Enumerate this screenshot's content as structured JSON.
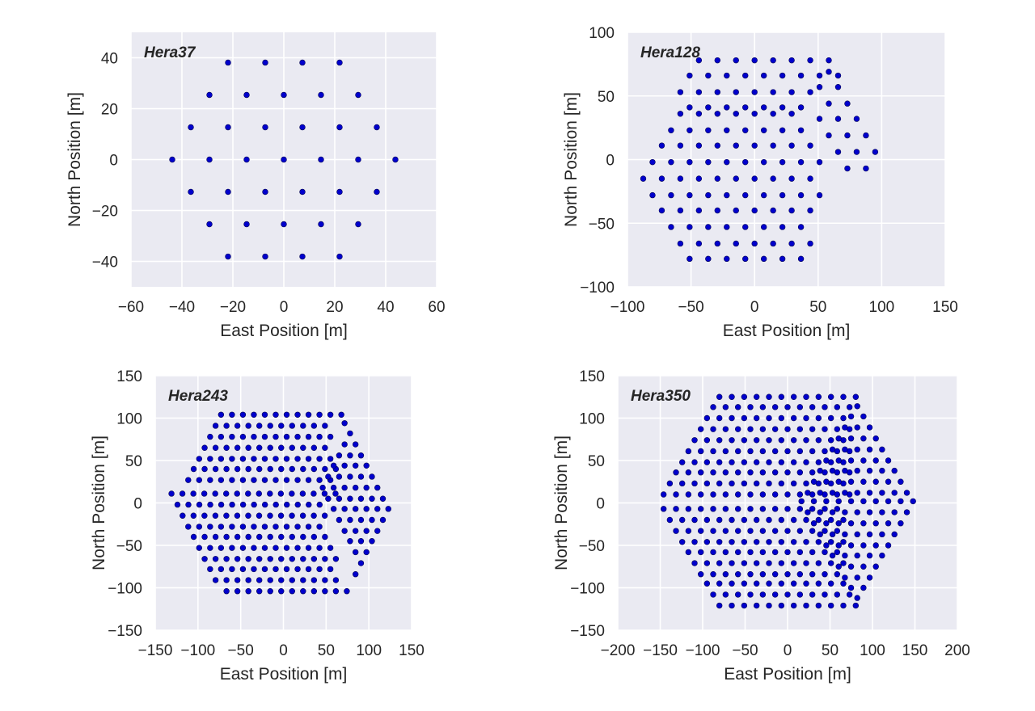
{
  "chart_data": [
    {
      "type": "scatter",
      "title": "Hera37",
      "xlabel": "East Position [m]",
      "ylabel": "North Position [m]",
      "xlim": [
        -60,
        60
      ],
      "ylim": [
        -50,
        50
      ],
      "xticks": [
        -60,
        -40,
        -20,
        0,
        20,
        40,
        60
      ],
      "yticks": [
        -40,
        -20,
        0,
        20,
        40
      ],
      "grid": true,
      "color": "#0000cc",
      "rows": [
        {
          "y": 38.1,
          "x_start": -21.9,
          "count": 4,
          "spacing": 14.6
        },
        {
          "y": 25.4,
          "x_start": -29.2,
          "count": 5,
          "spacing": 14.6
        },
        {
          "y": 12.7,
          "x_start": -36.5,
          "count": 6,
          "spacing": 14.6
        },
        {
          "y": 0,
          "x_start": -43.8,
          "count": 7,
          "spacing": 14.6
        },
        {
          "y": -12.7,
          "x_start": -36.5,
          "count": 6,
          "spacing": 14.6
        },
        {
          "y": -25.4,
          "x_start": -29.2,
          "count": 5,
          "spacing": 14.6
        },
        {
          "y": -38.1,
          "x_start": -21.9,
          "count": 4,
          "spacing": 14.6
        }
      ]
    },
    {
      "type": "scatter",
      "title": "Hera128",
      "xlabel": "East Position [m]",
      "ylabel": "North Position [m]",
      "xlim": [
        -100,
        150
      ],
      "ylim": [
        -100,
        100
      ],
      "xticks": [
        -100,
        -50,
        0,
        50,
        100,
        150
      ],
      "yticks": [
        -100,
        -50,
        0,
        50,
        100
      ],
      "grid": true,
      "color": "#0000cc",
      "rows": [
        {
          "y": 78,
          "x_start": -43.8,
          "count": 8,
          "spacing": 14.6
        },
        {
          "y": 66,
          "x_start": -51.1,
          "count": 9,
          "spacing": 14.6
        },
        {
          "y": 53,
          "x_start": -58.4,
          "count": 8,
          "spacing": 14.6
        },
        {
          "y": 41,
          "x_start": -51.1,
          "count": 7,
          "spacing": 14.6
        },
        {
          "y": 36,
          "x_start": -58.4,
          "count": 7,
          "spacing": 14.6
        },
        {
          "y": 23,
          "x_start": -65.7,
          "count": 8,
          "spacing": 14.6
        },
        {
          "y": 11,
          "x_start": -73.0,
          "count": 9,
          "spacing": 14.6
        },
        {
          "y": -2,
          "x_start": -80.3,
          "count": 10,
          "spacing": 14.6
        },
        {
          "y": -15,
          "x_start": -87.6,
          "count": 10,
          "spacing": 14.6
        },
        {
          "y": -28,
          "x_start": -80.3,
          "count": 10,
          "spacing": 14.6
        },
        {
          "y": -40,
          "x_start": -73.0,
          "count": 9,
          "spacing": 14.6
        },
        {
          "y": -53,
          "x_start": -65.7,
          "count": 8,
          "spacing": 14.6
        },
        {
          "y": -66,
          "x_start": -58.4,
          "count": 8,
          "spacing": 14.6
        },
        {
          "y": -78,
          "x_start": -51.1,
          "count": 7,
          "spacing": 14.6
        },
        {
          "y": 69,
          "x_start": 58.4,
          "count": 1,
          "spacing": 14.6
        },
        {
          "y": 57,
          "x_start": 51.1,
          "count": 2,
          "spacing": 14.6
        },
        {
          "y": 44,
          "x_start": 58.4,
          "count": 2,
          "spacing": 14.6
        },
        {
          "y": 32,
          "x_start": 51.1,
          "count": 3,
          "spacing": 14.6
        },
        {
          "y": 19,
          "x_start": 58.4,
          "count": 3,
          "spacing": 14.6
        },
        {
          "y": 6,
          "x_start": 65.7,
          "count": 3,
          "spacing": 14.6
        },
        {
          "y": -7,
          "x_start": 73.0,
          "count": 2,
          "spacing": 14.6
        }
      ]
    },
    {
      "type": "scatter",
      "title": "Hera243",
      "xlabel": "East Position [m]",
      "ylabel": "North Position [m]",
      "xlim": [
        -150,
        150
      ],
      "ylim": [
        -150,
        150
      ],
      "xticks": [
        -150,
        -100,
        -50,
        0,
        50,
        100,
        150
      ],
      "yticks": [
        -150,
        -100,
        -50,
        0,
        50,
        100,
        150
      ],
      "grid": true,
      "color": "#0000cc",
      "rows": [
        {
          "y": 104,
          "x_start": -73.0,
          "count": 12,
          "spacing": 12.8
        },
        {
          "y": 91,
          "x_start": -79.4,
          "count": 11,
          "spacing": 12.8
        },
        {
          "y": 78,
          "x_start": -85.8,
          "count": 12,
          "spacing": 12.8
        },
        {
          "y": 65,
          "x_start": -92.2,
          "count": 12,
          "spacing": 12.8
        },
        {
          "y": 52,
          "x_start": -98.6,
          "count": 13,
          "spacing": 12.8
        },
        {
          "y": 40,
          "x_start": -105.0,
          "count": 14,
          "spacing": 12.8
        },
        {
          "y": 27,
          "x_start": -111.4,
          "count": 14,
          "spacing": 12.8
        },
        {
          "y": 11,
          "x_start": -131.0,
          "count": 16,
          "spacing": 12.8
        },
        {
          "y": -2,
          "x_start": -124.0,
          "count": 14,
          "spacing": 12.8
        },
        {
          "y": -15,
          "x_start": -118.0,
          "count": 14,
          "spacing": 12.8
        },
        {
          "y": -28,
          "x_start": -111.4,
          "count": 13,
          "spacing": 12.8
        },
        {
          "y": -40,
          "x_start": -105.0,
          "count": 13,
          "spacing": 12.8
        },
        {
          "y": -53,
          "x_start": -98.6,
          "count": 13,
          "spacing": 12.8
        },
        {
          "y": -66,
          "x_start": -92.2,
          "count": 13,
          "spacing": 12.8
        },
        {
          "y": -78,
          "x_start": -85.8,
          "count": 12,
          "spacing": 12.8
        },
        {
          "y": -91,
          "x_start": -79.4,
          "count": 12,
          "spacing": 12.8
        },
        {
          "y": -104,
          "x_start": -66.6,
          "count": 12,
          "spacing": 12.8
        },
        {
          "y": 94,
          "x_start": 71.6,
          "count": 1,
          "spacing": 12.8
        },
        {
          "y": 82,
          "x_start": 78.0,
          "count": 1,
          "spacing": 12.8
        },
        {
          "y": 69,
          "x_start": 71.6,
          "count": 2,
          "spacing": 12.8
        },
        {
          "y": 56,
          "x_start": 65.2,
          "count": 3,
          "spacing": 12.8
        },
        {
          "y": 44,
          "x_start": 58.8,
          "count": 4,
          "spacing": 12.8
        },
        {
          "y": 31,
          "x_start": 52.4,
          "count": 5,
          "spacing": 12.8
        },
        {
          "y": 18,
          "x_start": 46.0,
          "count": 6,
          "spacing": 12.8
        },
        {
          "y": 5,
          "x_start": 52.4,
          "count": 6,
          "spacing": 12.8
        },
        {
          "y": -7,
          "x_start": 58.8,
          "count": 6,
          "spacing": 12.8
        },
        {
          "y": -20,
          "x_start": 65.2,
          "count": 5,
          "spacing": 12.8
        },
        {
          "y": -33,
          "x_start": 71.6,
          "count": 4,
          "spacing": 12.8
        },
        {
          "y": -45,
          "x_start": 78.0,
          "count": 3,
          "spacing": 12.8
        },
        {
          "y": -58,
          "x_start": 84.4,
          "count": 2,
          "spacing": 12.8
        },
        {
          "y": -71,
          "x_start": 90.8,
          "count": 1,
          "spacing": 12.8
        },
        {
          "y": -84,
          "x_start": 84.4,
          "count": 1,
          "spacing": 12.8
        }
      ]
    },
    {
      "type": "scatter",
      "title": "Hera350",
      "xlabel": "East Position [m]",
      "ylabel": "North Position [m]",
      "xlim": [
        -200,
        200
      ],
      "ylim": [
        -150,
        150
      ],
      "xticks": [
        -200,
        -150,
        -100,
        -50,
        0,
        50,
        100,
        150,
        200
      ],
      "yticks": [
        -150,
        -100,
        -50,
        0,
        50,
        100,
        150
      ],
      "grid": true,
      "color": "#0000cc",
      "rows": [
        {
          "y": 125,
          "x_start": -80.3,
          "count": 12,
          "spacing": 14.6
        },
        {
          "y": 113,
          "x_start": -87.6,
          "count": 12,
          "spacing": 14.6
        },
        {
          "y": 100,
          "x_start": -94.9,
          "count": 12,
          "spacing": 14.6
        },
        {
          "y": 87,
          "x_start": -102.2,
          "count": 13,
          "spacing": 14.6
        },
        {
          "y": 74,
          "x_start": -109.5,
          "count": 13,
          "spacing": 14.6
        },
        {
          "y": 61,
          "x_start": -116.8,
          "count": 14,
          "spacing": 14.6
        },
        {
          "y": 48,
          "x_start": -124.1,
          "count": 14,
          "spacing": 14.6
        },
        {
          "y": 36,
          "x_start": -131.4,
          "count": 15,
          "spacing": 14.6
        },
        {
          "y": 23,
          "x_start": -138.7,
          "count": 15,
          "spacing": 14.6
        },
        {
          "y": 10,
          "x_start": -146.0,
          "count": 16,
          "spacing": 14.6
        },
        {
          "y": -7,
          "x_start": -146.0,
          "count": 15,
          "spacing": 14.6
        },
        {
          "y": -20,
          "x_start": -138.7,
          "count": 15,
          "spacing": 14.6
        },
        {
          "y": -33,
          "x_start": -131.4,
          "count": 14,
          "spacing": 14.6
        },
        {
          "y": -46,
          "x_start": -124.1,
          "count": 14,
          "spacing": 14.6
        },
        {
          "y": -58,
          "x_start": -116.8,
          "count": 13,
          "spacing": 14.6
        },
        {
          "y": -71,
          "x_start": -109.5,
          "count": 13,
          "spacing": 14.6
        },
        {
          "y": -84,
          "x_start": -102.2,
          "count": 12,
          "spacing": 14.6
        },
        {
          "y": -95,
          "x_start": -94.9,
          "count": 12,
          "spacing": 14.6
        },
        {
          "y": -108,
          "x_start": -87.6,
          "count": 12,
          "spacing": 14.6
        },
        {
          "y": -121,
          "x_start": -80.3,
          "count": 12,
          "spacing": 14.6
        },
        {
          "y": 114,
          "x_start": 82.1,
          "count": 1,
          "spacing": 14.6
        },
        {
          "y": 102,
          "x_start": 74.8,
          "count": 2,
          "spacing": 14.6
        },
        {
          "y": 89,
          "x_start": 67.5,
          "count": 3,
          "spacing": 14.6
        },
        {
          "y": 76,
          "x_start": 60.2,
          "count": 4,
          "spacing": 14.6
        },
        {
          "y": 63,
          "x_start": 52.9,
          "count": 5,
          "spacing": 14.6
        },
        {
          "y": 50,
          "x_start": 45.6,
          "count": 6,
          "spacing": 14.6
        },
        {
          "y": 38,
          "x_start": 38.3,
          "count": 7,
          "spacing": 14.6
        },
        {
          "y": 25,
          "x_start": 31.0,
          "count": 8,
          "spacing": 14.6
        },
        {
          "y": 12,
          "x_start": 23.7,
          "count": 9,
          "spacing": 14.6
        },
        {
          "y": 2,
          "x_start": 16.4,
          "count": 10,
          "spacing": 14.6
        },
        {
          "y": -11,
          "x_start": 23.7,
          "count": 9,
          "spacing": 14.6
        },
        {
          "y": -24,
          "x_start": 31.0,
          "count": 8,
          "spacing": 14.6
        },
        {
          "y": -37,
          "x_start": 38.3,
          "count": 7,
          "spacing": 14.6
        },
        {
          "y": -50,
          "x_start": 45.6,
          "count": 6,
          "spacing": 14.6
        },
        {
          "y": -62,
          "x_start": 52.9,
          "count": 5,
          "spacing": 14.6
        },
        {
          "y": -75,
          "x_start": 60.2,
          "count": 4,
          "spacing": 14.6
        },
        {
          "y": -88,
          "x_start": 67.5,
          "count": 3,
          "spacing": 14.6
        },
        {
          "y": -100,
          "x_start": 74.8,
          "count": 2,
          "spacing": 14.6
        },
        {
          "y": -112,
          "x_start": 82.1,
          "count": 1,
          "spacing": 14.6
        }
      ]
    }
  ]
}
